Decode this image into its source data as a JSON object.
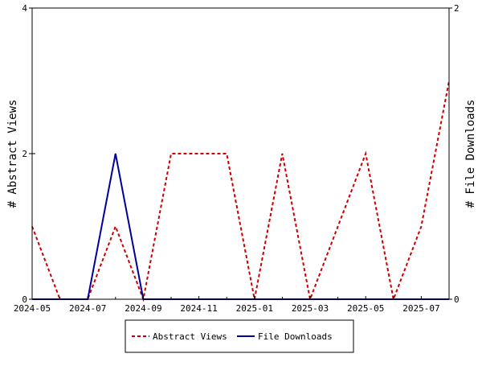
{
  "chart_data": {
    "type": "line",
    "x": [
      "2024-05",
      "2024-06",
      "2024-07",
      "2024-08",
      "2024-09",
      "2024-10",
      "2024-11",
      "2024-12",
      "2025-01",
      "2025-02",
      "2025-03",
      "2025-04",
      "2025-05",
      "2025-06",
      "2025-07",
      "2025-08"
    ],
    "x_tick_labels": [
      "2024-05",
      "2024-07",
      "2024-09",
      "2024-11",
      "2025-01",
      "2025-03",
      "2025-05",
      "2025-07"
    ],
    "y_left_label": "# Abstract Views",
    "y_right_label": "# File Downloads",
    "y_left_lim": [
      0,
      4
    ],
    "y_right_lim": [
      0,
      2
    ],
    "y_left_ticks": [
      0,
      2,
      4
    ],
    "y_right_ticks": [
      0,
      2
    ],
    "legend_position": "bottom-center",
    "series": [
      {
        "name": "Abstract Views",
        "axis": "left",
        "color": "#cc0000",
        "style": "dashed",
        "values": [
          1,
          0,
          0,
          1,
          0,
          2,
          2,
          2,
          0,
          2,
          0,
          1,
          2,
          0,
          1,
          3
        ]
      },
      {
        "name": "File Downloads",
        "axis": "right",
        "color": "#000099",
        "style": "solid",
        "values": [
          0,
          0,
          0,
          1,
          0,
          0,
          0,
          0,
          0,
          0,
          0,
          0,
          0,
          0,
          0,
          0
        ]
      }
    ]
  }
}
